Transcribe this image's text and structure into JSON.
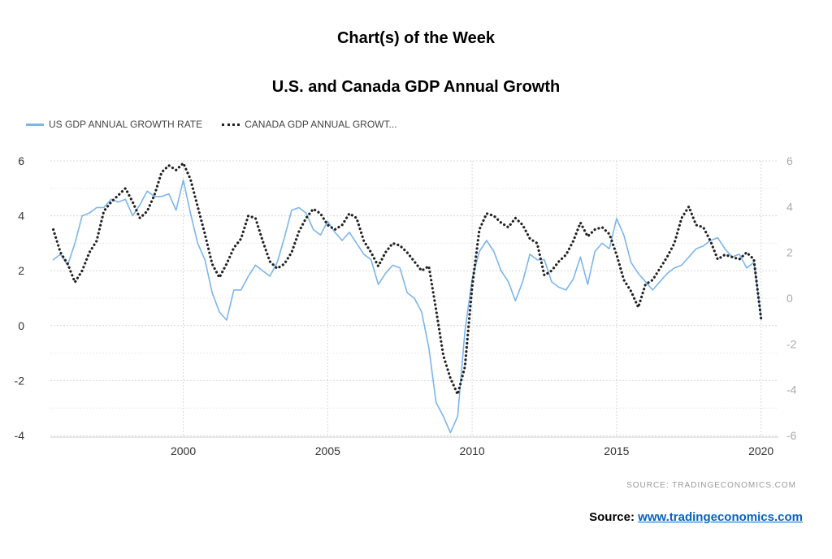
{
  "header": {
    "title": "Chart(s) of the Week",
    "subtitle": "U.S. and Canada GDP Annual Growth"
  },
  "footer": {
    "source_small": "SOURCE:  TRADINGECONOMICS.COM",
    "source_label": "Source:",
    "source_link": "www.tradingeconomics.com"
  },
  "chart_data": {
    "type": "line",
    "title": "U.S. and Canada GDP Annual Growth",
    "xlabel": "",
    "ylabel_left": "",
    "ylabel_right": "",
    "xlim": [
      1995.4,
      2020.6
    ],
    "ylim_left": [
      -4,
      6
    ],
    "ylim_right": [
      -6,
      6
    ],
    "x_ticks": [
      2000,
      2005,
      2010,
      2015,
      2020
    ],
    "y_ticks_left": [
      -4,
      -2,
      0,
      2,
      4,
      6
    ],
    "y_ticks_right": [
      -6,
      -4,
      -2,
      0,
      2,
      4,
      6
    ],
    "grid": true,
    "legend_position": "top-left",
    "series": [
      {
        "name": "US GDP ANNUAL GROWTH RATE",
        "axis": "left",
        "style": "solid",
        "color": "#7cb5ec",
        "x": [
          1995.5,
          1995.75,
          1996.0,
          1996.25,
          1996.5,
          1996.75,
          1997.0,
          1997.25,
          1997.5,
          1997.75,
          1998.0,
          1998.25,
          1998.5,
          1998.75,
          1999.0,
          1999.25,
          1999.5,
          1999.75,
          2000.0,
          2000.25,
          2000.5,
          2000.75,
          2001.0,
          2001.25,
          2001.5,
          2001.75,
          2002.0,
          2002.25,
          2002.5,
          2002.75,
          2003.0,
          2003.25,
          2003.5,
          2003.75,
          2004.0,
          2004.25,
          2004.5,
          2004.75,
          2005.0,
          2005.25,
          2005.5,
          2005.75,
          2006.0,
          2006.25,
          2006.5,
          2006.75,
          2007.0,
          2007.25,
          2007.5,
          2007.75,
          2008.0,
          2008.25,
          2008.5,
          2008.75,
          2009.0,
          2009.25,
          2009.5,
          2009.75,
          2010.0,
          2010.25,
          2010.5,
          2010.75,
          2011.0,
          2011.25,
          2011.5,
          2011.75,
          2012.0,
          2012.25,
          2012.5,
          2012.75,
          2013.0,
          2013.25,
          2013.5,
          2013.75,
          2014.0,
          2014.25,
          2014.5,
          2014.75,
          2015.0,
          2015.25,
          2015.5,
          2015.75,
          2016.0,
          2016.25,
          2016.5,
          2016.75,
          2017.0,
          2017.25,
          2017.5,
          2017.75,
          2018.0,
          2018.25,
          2018.5,
          2018.75,
          2019.0,
          2019.25,
          2019.5,
          2019.75,
          2020.0
        ],
        "values": [
          2.4,
          2.6,
          2.2,
          3.0,
          4.0,
          4.1,
          4.3,
          4.3,
          4.6,
          4.5,
          4.6,
          4.0,
          4.4,
          4.9,
          4.7,
          4.7,
          4.8,
          4.2,
          5.3,
          4.1,
          3.0,
          2.4,
          1.2,
          0.5,
          0.2,
          1.3,
          1.3,
          1.8,
          2.2,
          2.0,
          1.8,
          2.3,
          3.2,
          4.2,
          4.3,
          4.1,
          3.5,
          3.3,
          3.8,
          3.4,
          3.1,
          3.4,
          3.0,
          2.6,
          2.4,
          1.5,
          1.9,
          2.2,
          2.1,
          1.2,
          1.0,
          0.5,
          -0.8,
          -2.8,
          -3.3,
          -3.9,
          -3.3,
          -0.2,
          1.7,
          2.7,
          3.1,
          2.7,
          2.0,
          1.6,
          0.9,
          1.6,
          2.6,
          2.4,
          2.4,
          1.6,
          1.4,
          1.3,
          1.7,
          2.5,
          1.5,
          2.7,
          3.0,
          2.8,
          3.9,
          3.3,
          2.3,
          1.9,
          1.6,
          1.3,
          1.6,
          1.9,
          2.1,
          2.2,
          2.5,
          2.8,
          2.9,
          3.1,
          3.2,
          2.8,
          2.5,
          2.6,
          2.1,
          2.3,
          0.3
        ]
      },
      {
        "name": "CANADA GDP ANNUAL GROWT...",
        "axis": "right",
        "style": "dotted",
        "color": "#222222",
        "x": [
          1995.5,
          1995.75,
          1996.0,
          1996.25,
          1996.5,
          1996.75,
          1997.0,
          1997.25,
          1997.5,
          1997.75,
          1998.0,
          1998.25,
          1998.5,
          1998.75,
          1999.0,
          1999.25,
          1999.5,
          1999.75,
          2000.0,
          2000.25,
          2000.5,
          2000.75,
          2001.0,
          2001.25,
          2001.5,
          2001.75,
          2002.0,
          2002.25,
          2002.5,
          2002.75,
          2003.0,
          2003.25,
          2003.5,
          2003.75,
          2004.0,
          2004.25,
          2004.5,
          2004.75,
          2005.0,
          2005.25,
          2005.5,
          2005.75,
          2006.0,
          2006.25,
          2006.5,
          2006.75,
          2007.0,
          2007.25,
          2007.5,
          2007.75,
          2008.0,
          2008.25,
          2008.5,
          2008.75,
          2009.0,
          2009.25,
          2009.5,
          2009.75,
          2010.0,
          2010.25,
          2010.5,
          2010.75,
          2011.0,
          2011.25,
          2011.5,
          2011.75,
          2012.0,
          2012.25,
          2012.5,
          2012.75,
          2013.0,
          2013.25,
          2013.5,
          2013.75,
          2014.0,
          2014.25,
          2014.5,
          2014.75,
          2015.0,
          2015.25,
          2015.5,
          2015.75,
          2016.0,
          2016.25,
          2016.5,
          2016.75,
          2017.0,
          2017.25,
          2017.5,
          2017.75,
          2018.0,
          2018.25,
          2018.5,
          2018.75,
          2019.0,
          2019.25,
          2019.5,
          2019.75,
          2020.0
        ],
        "values": [
          3.0,
          2.0,
          1.5,
          0.7,
          1.2,
          2.0,
          2.5,
          3.8,
          4.2,
          4.5,
          4.8,
          4.2,
          3.5,
          3.8,
          4.5,
          5.5,
          5.8,
          5.6,
          5.9,
          5.2,
          4.0,
          2.8,
          1.5,
          0.9,
          1.5,
          2.2,
          2.6,
          3.6,
          3.5,
          2.5,
          1.6,
          1.3,
          1.5,
          2.0,
          2.9,
          3.5,
          3.9,
          3.7,
          3.2,
          3.0,
          3.2,
          3.7,
          3.5,
          2.5,
          2.0,
          1.4,
          2.0,
          2.4,
          2.3,
          2.0,
          1.6,
          1.2,
          1.4,
          -0.5,
          -2.5,
          -3.5,
          -4.2,
          -3.0,
          0.5,
          3.0,
          3.7,
          3.6,
          3.3,
          3.1,
          3.5,
          3.2,
          2.6,
          2.4,
          1.0,
          1.2,
          1.6,
          1.9,
          2.5,
          3.3,
          2.7,
          3.0,
          3.1,
          2.8,
          1.9,
          0.8,
          0.3,
          -0.4,
          0.6,
          0.8,
          1.3,
          1.8,
          2.4,
          3.5,
          4.0,
          3.2,
          3.1,
          2.5,
          1.7,
          1.9,
          1.8,
          1.7,
          2.0,
          1.7,
          -0.9
        ]
      }
    ]
  }
}
